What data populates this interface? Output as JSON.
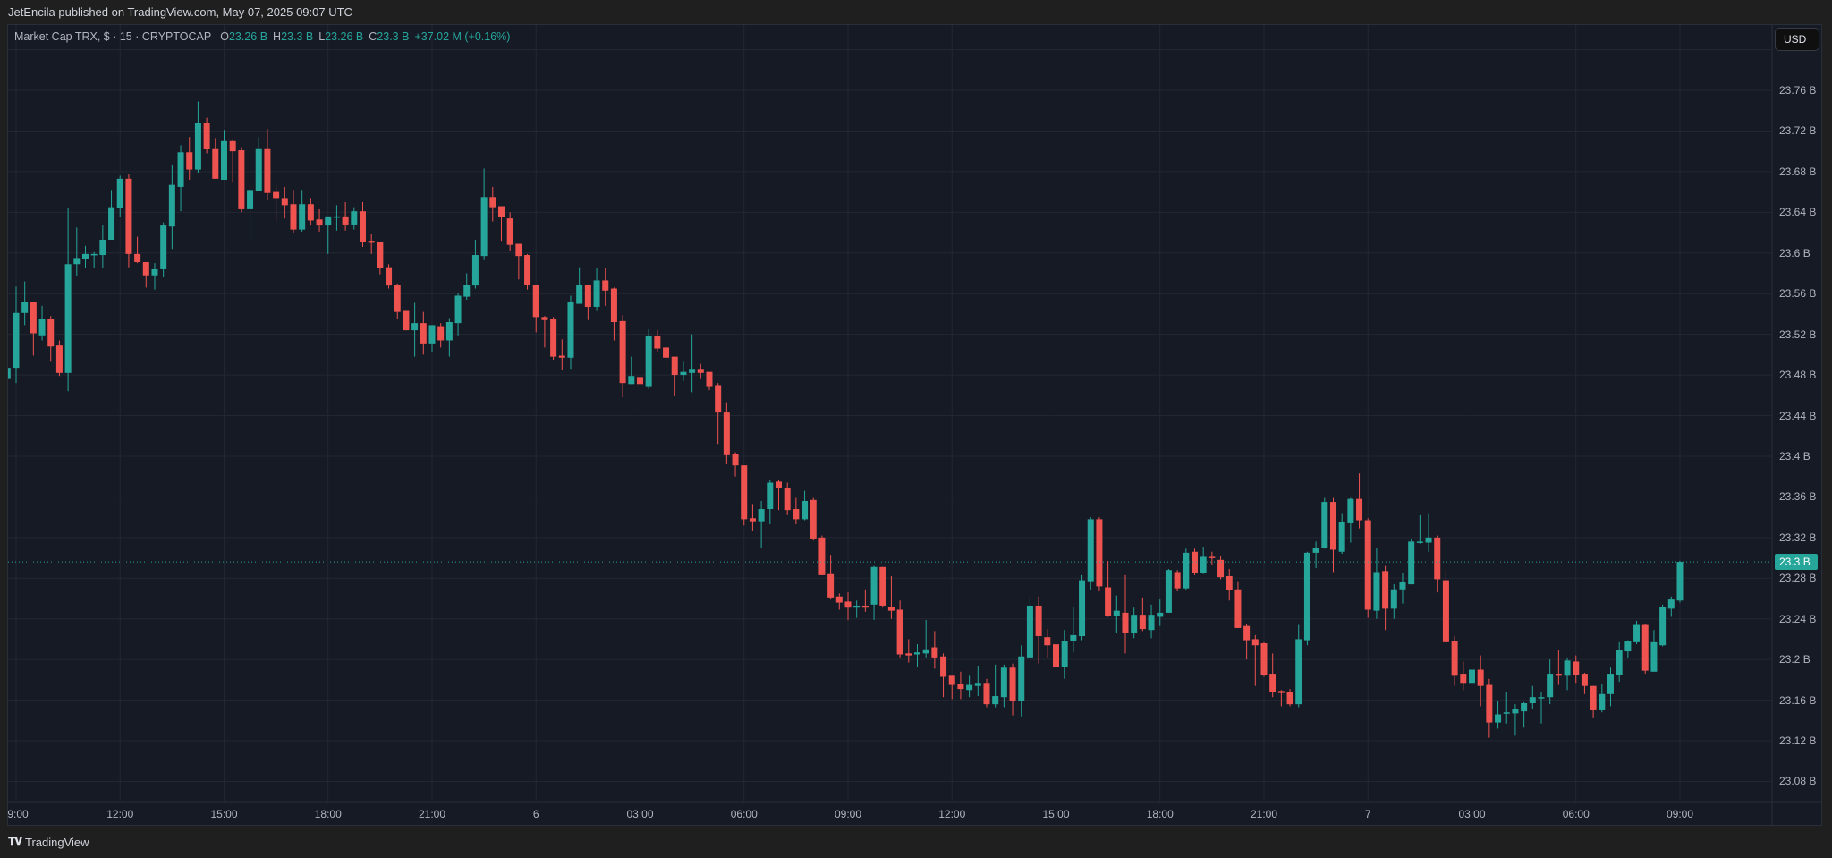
{
  "header": {
    "published": "JetEncila published on TradingView.com, May 07, 2025 09:07 UTC"
  },
  "legend": {
    "symbol": "Market Cap TRX, $ · 15 · CRYPTOCAP",
    "o_label": "O",
    "o_value": "23.26 B",
    "h_label": "H",
    "h_value": "23.3 B",
    "l_label": "L",
    "l_value": "23.26 B",
    "c_label": "C",
    "c_value": "23.3 B",
    "change": "+37.02 M (+0.16%)"
  },
  "currency_button": "USD",
  "current_price_label": "23.3 B",
  "footer": {
    "brand": "TradingView",
    "logo": "TV"
  },
  "colors": {
    "up": "#26a69a",
    "down": "#ef5350",
    "background": "#161a25",
    "grid": "#232733"
  },
  "chart_data": {
    "type": "candlestick",
    "interval_minutes": 15,
    "y_unit": "B USD",
    "ylim": [
      23.05,
      23.82
    ],
    "current_price": 23.296,
    "y_ticks": [
      {
        "value": 23.76,
        "label": "23.76 B"
      },
      {
        "value": 23.72,
        "label": "23.72 B"
      },
      {
        "value": 23.68,
        "label": "23.68 B"
      },
      {
        "value": 23.64,
        "label": "23.64 B"
      },
      {
        "value": 23.6,
        "label": "23.6 B"
      },
      {
        "value": 23.56,
        "label": "23.56 B"
      },
      {
        "value": 23.52,
        "label": "23.52 B"
      },
      {
        "value": 23.48,
        "label": "23.48 B"
      },
      {
        "value": 23.44,
        "label": "23.44 B"
      },
      {
        "value": 23.4,
        "label": "23.4 B"
      },
      {
        "value": 23.36,
        "label": "23.36 B"
      },
      {
        "value": 23.32,
        "label": "23.32 B"
      },
      {
        "value": 23.28,
        "label": "23.28 B"
      },
      {
        "value": 23.24,
        "label": "23.24 B"
      },
      {
        "value": 23.2,
        "label": "23.2 B"
      },
      {
        "value": 23.16,
        "label": "23.16 B"
      },
      {
        "value": 23.12,
        "label": "23.12 B"
      },
      {
        "value": 23.08,
        "label": "23.08 B"
      }
    ],
    "x_ticks": [
      {
        "index": 1,
        "label": "9:00"
      },
      {
        "index": 13,
        "label": "12:00"
      },
      {
        "index": 25,
        "label": "15:00"
      },
      {
        "index": 37,
        "label": "18:00"
      },
      {
        "index": 49,
        "label": "21:00"
      },
      {
        "index": 61,
        "label": "6"
      },
      {
        "index": 73,
        "label": "03:00"
      },
      {
        "index": 85,
        "label": "06:00"
      },
      {
        "index": 97,
        "label": "09:00"
      },
      {
        "index": 109,
        "label": "12:00"
      },
      {
        "index": 121,
        "label": "15:00"
      },
      {
        "index": 133,
        "label": "18:00"
      },
      {
        "index": 145,
        "label": "21:00"
      },
      {
        "index": 157,
        "label": "7"
      },
      {
        "index": 169,
        "label": "03:00"
      },
      {
        "index": 181,
        "label": "06:00"
      },
      {
        "index": 193,
        "label": "09:00"
      }
    ],
    "candles_ohlc": [
      [
        23.476,
        23.488,
        23.47,
        23.487
      ],
      [
        23.487,
        23.567,
        23.472,
        23.541
      ],
      [
        23.541,
        23.572,
        23.529,
        23.552
      ],
      [
        23.552,
        23.552,
        23.499,
        23.521
      ],
      [
        23.519,
        23.548,
        23.514,
        23.535
      ],
      [
        23.535,
        23.538,
        23.493,
        23.508
      ],
      [
        23.509,
        23.514,
        23.479,
        23.482
      ],
      [
        23.482,
        23.644,
        23.464,
        23.589
      ],
      [
        23.589,
        23.625,
        23.577,
        23.595
      ],
      [
        23.594,
        23.607,
        23.585,
        23.599
      ],
      [
        23.599,
        23.601,
        23.585,
        23.599
      ],
      [
        23.598,
        23.627,
        23.585,
        23.613
      ],
      [
        23.613,
        23.662,
        23.613,
        23.645
      ],
      [
        23.644,
        23.676,
        23.635,
        23.673
      ],
      [
        23.673,
        23.678,
        23.586,
        23.599
      ],
      [
        23.599,
        23.616,
        23.59,
        23.591
      ],
      [
        23.591,
        23.591,
        23.566,
        23.578
      ],
      [
        23.578,
        23.59,
        23.564,
        23.584
      ],
      [
        23.584,
        23.63,
        23.576,
        23.627
      ],
      [
        23.626,
        23.687,
        23.604,
        23.667
      ],
      [
        23.665,
        23.706,
        23.641,
        23.699
      ],
      [
        23.699,
        23.714,
        23.672,
        23.682
      ],
      [
        23.682,
        23.749,
        23.679,
        23.728
      ],
      [
        23.728,
        23.733,
        23.698,
        23.702
      ],
      [
        23.703,
        23.713,
        23.673,
        23.673
      ],
      [
        23.672,
        23.721,
        23.672,
        23.71
      ],
      [
        23.71,
        23.712,
        23.67,
        23.7
      ],
      [
        23.701,
        23.704,
        23.64,
        23.643
      ],
      [
        23.643,
        23.666,
        23.613,
        23.662
      ],
      [
        23.661,
        23.714,
        23.661,
        23.703
      ],
      [
        23.703,
        23.722,
        23.652,
        23.659
      ],
      [
        23.66,
        23.667,
        23.631,
        23.654
      ],
      [
        23.654,
        23.665,
        23.634,
        23.647
      ],
      [
        23.648,
        23.662,
        23.62,
        23.623
      ],
      [
        23.623,
        23.662,
        23.621,
        23.648
      ],
      [
        23.648,
        23.654,
        23.627,
        23.632
      ],
      [
        23.633,
        23.643,
        23.621,
        23.627
      ],
      [
        23.627,
        23.636,
        23.599,
        23.636
      ],
      [
        23.635,
        23.647,
        23.622,
        23.636
      ],
      [
        23.636,
        23.65,
        23.622,
        23.628
      ],
      [
        23.628,
        23.645,
        23.623,
        23.641
      ],
      [
        23.641,
        23.65,
        23.606,
        23.611
      ],
      [
        23.612,
        23.619,
        23.599,
        23.61
      ],
      [
        23.611,
        23.611,
        23.579,
        23.585
      ],
      [
        23.586,
        23.589,
        23.565,
        23.568
      ],
      [
        23.569,
        23.57,
        23.535,
        23.542
      ],
      [
        23.543,
        23.543,
        23.524,
        23.524
      ],
      [
        23.524,
        23.551,
        23.498,
        23.531
      ],
      [
        23.531,
        23.542,
        23.5,
        23.511
      ],
      [
        23.511,
        23.529,
        23.503,
        23.529
      ],
      [
        23.528,
        23.531,
        23.507,
        23.514
      ],
      [
        23.514,
        23.536,
        23.498,
        23.532
      ],
      [
        23.531,
        23.561,
        23.519,
        23.558
      ],
      [
        23.557,
        23.58,
        23.554,
        23.569
      ],
      [
        23.568,
        23.613,
        23.565,
        23.598
      ],
      [
        23.597,
        23.683,
        23.593,
        23.655
      ],
      [
        23.655,
        23.665,
        23.631,
        23.645
      ],
      [
        23.646,
        23.646,
        23.612,
        23.635
      ],
      [
        23.634,
        23.64,
        23.602,
        23.608
      ],
      [
        23.609,
        23.609,
        23.574,
        23.597
      ],
      [
        23.598,
        23.599,
        23.564,
        23.569
      ],
      [
        23.569,
        23.569,
        23.522,
        23.537
      ],
      [
        23.537,
        23.538,
        23.507,
        23.534
      ],
      [
        23.535,
        23.537,
        23.495,
        23.498
      ],
      [
        23.499,
        23.515,
        23.485,
        23.497
      ],
      [
        23.497,
        23.558,
        23.486,
        23.552
      ],
      [
        23.55,
        23.586,
        23.55,
        23.569
      ],
      [
        23.569,
        23.569,
        23.534,
        23.547
      ],
      [
        23.547,
        23.585,
        23.543,
        23.573
      ],
      [
        23.573,
        23.585,
        23.548,
        23.563
      ],
      [
        23.565,
        23.566,
        23.514,
        23.532
      ],
      [
        23.533,
        23.539,
        23.458,
        23.472
      ],
      [
        23.471,
        23.498,
        23.471,
        23.479
      ],
      [
        23.478,
        23.485,
        23.457,
        23.471
      ],
      [
        23.469,
        23.525,
        23.466,
        23.518
      ],
      [
        23.518,
        23.524,
        23.503,
        23.506
      ],
      [
        23.507,
        23.508,
        23.488,
        23.497
      ],
      [
        23.498,
        23.498,
        23.459,
        23.48
      ],
      [
        23.48,
        23.493,
        23.474,
        23.483
      ],
      [
        23.482,
        23.52,
        23.463,
        23.486
      ],
      [
        23.486,
        23.491,
        23.476,
        23.482
      ],
      [
        23.483,
        23.483,
        23.465,
        23.469
      ],
      [
        23.47,
        23.472,
        23.412,
        23.443
      ],
      [
        23.443,
        23.453,
        23.392,
        23.401
      ],
      [
        23.402,
        23.404,
        23.38,
        23.391
      ],
      [
        23.391,
        23.391,
        23.332,
        23.338
      ],
      [
        23.339,
        23.353,
        23.327,
        23.336
      ],
      [
        23.336,
        23.356,
        23.31,
        23.348
      ],
      [
        23.348,
        23.377,
        23.333,
        23.374
      ],
      [
        23.375,
        23.377,
        23.347,
        23.369
      ],
      [
        23.369,
        23.374,
        23.342,
        23.347
      ],
      [
        23.348,
        23.359,
        23.333,
        23.338
      ],
      [
        23.338,
        23.366,
        23.337,
        23.356
      ],
      [
        23.357,
        23.359,
        23.317,
        23.319
      ],
      [
        23.32,
        23.322,
        23.283,
        23.283
      ],
      [
        23.284,
        23.303,
        23.259,
        23.261
      ],
      [
        23.262,
        23.265,
        23.249,
        23.256
      ],
      [
        23.257,
        23.266,
        23.239,
        23.251
      ],
      [
        23.251,
        23.258,
        23.241,
        23.253
      ],
      [
        23.253,
        23.269,
        23.247,
        23.251
      ],
      [
        23.254,
        23.292,
        23.239,
        23.291
      ],
      [
        23.291,
        23.291,
        23.251,
        23.253
      ],
      [
        23.252,
        23.282,
        23.24,
        23.248
      ],
      [
        23.249,
        23.258,
        23.202,
        23.205
      ],
      [
        23.206,
        23.22,
        23.197,
        23.204
      ],
      [
        23.205,
        23.215,
        23.193,
        23.207
      ],
      [
        23.206,
        23.239,
        23.202,
        23.21
      ],
      [
        23.212,
        23.228,
        23.191,
        23.202
      ],
      [
        23.203,
        23.206,
        23.163,
        23.183
      ],
      [
        23.184,
        23.184,
        23.161,
        23.175
      ],
      [
        23.176,
        23.188,
        23.161,
        23.171
      ],
      [
        23.17,
        23.184,
        23.163,
        23.175
      ],
      [
        23.174,
        23.194,
        23.164,
        23.177
      ],
      [
        23.177,
        23.181,
        23.153,
        23.156
      ],
      [
        23.156,
        23.195,
        23.153,
        23.164
      ],
      [
        23.163,
        23.195,
        23.153,
        23.192
      ],
      [
        23.192,
        23.196,
        23.145,
        23.159
      ],
      [
        23.159,
        23.214,
        23.144,
        23.203
      ],
      [
        23.202,
        23.262,
        23.202,
        23.253
      ],
      [
        23.253,
        23.262,
        23.196,
        23.223
      ],
      [
        23.222,
        23.23,
        23.201,
        23.214
      ],
      [
        23.215,
        23.217,
        23.163,
        23.193
      ],
      [
        23.193,
        23.229,
        23.181,
        23.218
      ],
      [
        23.218,
        23.252,
        23.207,
        23.224
      ],
      [
        23.223,
        23.283,
        23.219,
        23.278
      ],
      [
        23.277,
        23.34,
        23.268,
        23.338
      ],
      [
        23.338,
        23.34,
        23.267,
        23.272
      ],
      [
        23.271,
        23.297,
        23.242,
        23.243
      ],
      [
        23.243,
        23.263,
        23.226,
        23.248
      ],
      [
        23.246,
        23.283,
        23.206,
        23.226
      ],
      [
        23.226,
        23.251,
        23.221,
        23.244
      ],
      [
        23.244,
        23.261,
        23.228,
        23.23
      ],
      [
        23.229,
        23.254,
        23.221,
        23.244
      ],
      [
        23.242,
        23.259,
        23.233,
        23.246
      ],
      [
        23.246,
        23.289,
        23.246,
        23.288
      ],
      [
        23.286,
        23.288,
        23.267,
        23.27
      ],
      [
        23.27,
        23.309,
        23.268,
        23.305
      ],
      [
        23.306,
        23.309,
        23.283,
        23.285
      ],
      [
        23.285,
        23.311,
        23.284,
        23.301
      ],
      [
        23.301,
        23.306,
        23.293,
        23.3
      ],
      [
        23.298,
        23.302,
        23.279,
        23.281
      ],
      [
        23.282,
        23.289,
        23.258,
        23.268
      ],
      [
        23.269,
        23.277,
        23.231,
        23.231
      ],
      [
        23.233,
        23.235,
        23.2,
        23.219
      ],
      [
        23.22,
        23.224,
        23.174,
        23.214
      ],
      [
        23.216,
        23.217,
        23.183,
        23.185
      ],
      [
        23.186,
        23.206,
        23.163,
        23.168
      ],
      [
        23.169,
        23.17,
        23.154,
        23.167
      ],
      [
        23.168,
        23.171,
        23.154,
        23.156
      ],
      [
        23.156,
        23.234,
        23.153,
        23.22
      ],
      [
        23.219,
        23.306,
        23.214,
        23.305
      ],
      [
        23.305,
        23.316,
        23.29,
        23.31
      ],
      [
        23.31,
        23.359,
        23.309,
        23.355
      ],
      [
        23.355,
        23.359,
        23.286,
        23.308
      ],
      [
        23.306,
        23.344,
        23.304,
        23.335
      ],
      [
        23.334,
        23.359,
        23.315,
        23.358
      ],
      [
        23.358,
        23.383,
        23.329,
        23.337
      ],
      [
        23.337,
        23.339,
        23.241,
        23.249
      ],
      [
        23.248,
        23.31,
        23.24,
        23.286
      ],
      [
        23.287,
        23.292,
        23.229,
        23.25
      ],
      [
        23.25,
        23.274,
        23.24,
        23.269
      ],
      [
        23.269,
        23.285,
        23.255,
        23.276
      ],
      [
        23.274,
        23.319,
        23.274,
        23.316
      ],
      [
        23.315,
        23.342,
        23.314,
        23.316
      ],
      [
        23.315,
        23.344,
        23.306,
        23.32
      ],
      [
        23.32,
        23.322,
        23.266,
        23.279
      ],
      [
        23.278,
        23.287,
        23.217,
        23.217
      ],
      [
        23.218,
        23.223,
        23.174,
        23.184
      ],
      [
        23.186,
        23.198,
        23.17,
        23.177
      ],
      [
        23.177,
        23.215,
        23.174,
        23.19
      ],
      [
        23.19,
        23.204,
        23.154,
        23.174
      ],
      [
        23.175,
        23.181,
        23.123,
        23.138
      ],
      [
        23.138,
        23.159,
        23.132,
        23.146
      ],
      [
        23.147,
        23.168,
        23.137,
        23.148
      ],
      [
        23.147,
        23.156,
        23.125,
        23.151
      ],
      [
        23.149,
        23.158,
        23.133,
        23.157
      ],
      [
        23.157,
        23.174,
        23.151,
        23.163
      ],
      [
        23.162,
        23.168,
        23.137,
        23.163
      ],
      [
        23.163,
        23.2,
        23.156,
        23.186
      ],
      [
        23.186,
        23.209,
        23.175,
        23.184
      ],
      [
        23.184,
        23.202,
        23.17,
        23.199
      ],
      [
        23.198,
        23.204,
        23.177,
        23.185
      ],
      [
        23.186,
        23.187,
        23.166,
        23.174
      ],
      [
        23.174,
        23.174,
        23.143,
        23.15
      ],
      [
        23.15,
        23.176,
        23.148,
        23.166
      ],
      [
        23.166,
        23.192,
        23.154,
        23.186
      ],
      [
        23.185,
        23.217,
        23.178,
        23.209
      ],
      [
        23.208,
        23.219,
        23.201,
        23.218
      ],
      [
        23.217,
        23.238,
        23.215,
        23.234
      ],
      [
        23.234,
        23.235,
        23.186,
        23.189
      ],
      [
        23.188,
        23.229,
        23.188,
        23.217
      ],
      [
        23.214,
        23.254,
        23.213,
        23.252
      ],
      [
        23.25,
        23.262,
        23.242,
        23.259
      ],
      [
        23.258,
        23.297,
        23.256,
        23.296
      ]
    ]
  }
}
